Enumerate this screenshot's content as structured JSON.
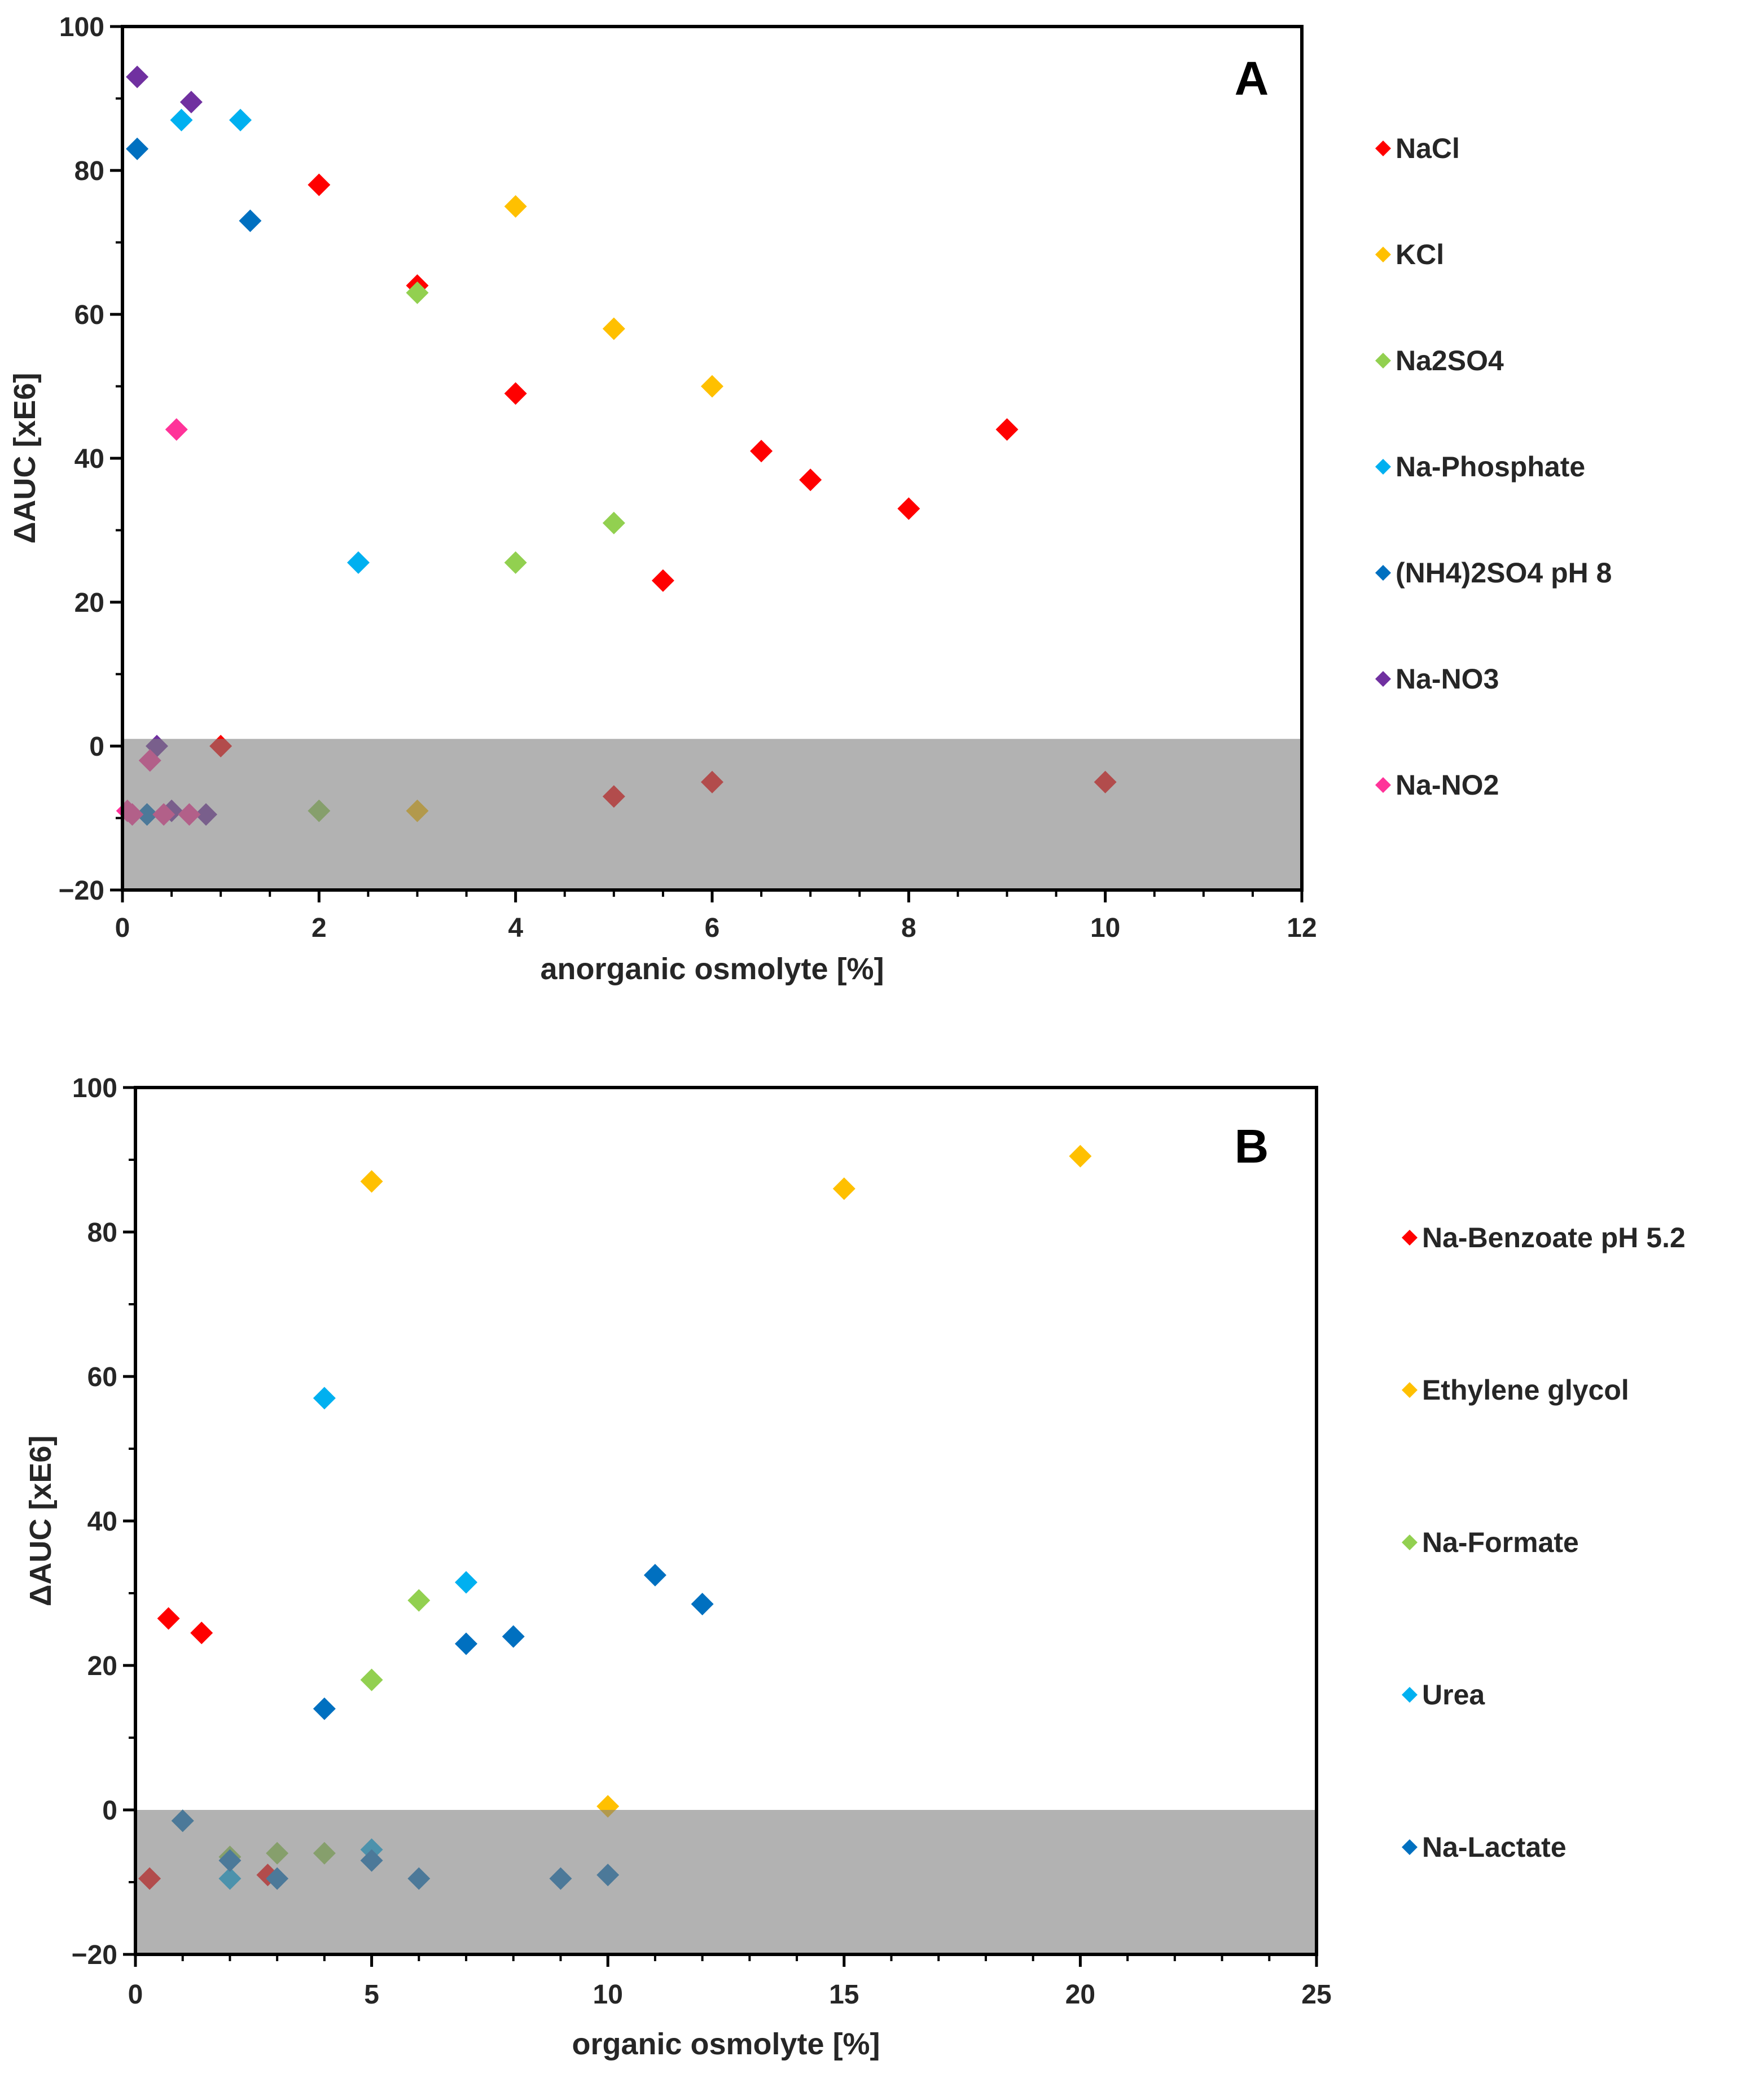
{
  "chart_data": [
    {
      "type": "scatter",
      "panel_label": "A",
      "xlabel": "anorganic osmolyte [%]",
      "ylabel": "ΔAUC [xE6]",
      "xlim": [
        0,
        12
      ],
      "ylim": [
        -20,
        100
      ],
      "xticks": [
        "0",
        "2",
        "4",
        "6",
        "8",
        "10",
        "12"
      ],
      "yticks": [
        "−20",
        "0",
        "20",
        "40",
        "60",
        "80",
        "100"
      ],
      "shaded_region": {
        "y_from": -20,
        "y_to": 1
      },
      "legend_position": "right",
      "series": [
        {
          "name": "NaCl",
          "color": "#ff0000",
          "points": [
            [
              1,
              0
            ],
            [
              2,
              78
            ],
            [
              3,
              64
            ],
            [
              4,
              49
            ],
            [
              5,
              -7
            ],
            [
              5.5,
              23
            ],
            [
              6,
              -5
            ],
            [
              6.5,
              41
            ],
            [
              7,
              37
            ],
            [
              8,
              33
            ],
            [
              9,
              44
            ],
            [
              10,
              -5
            ]
          ]
        },
        {
          "name": "KCl",
          "color": "#ffc000",
          "points": [
            [
              3,
              -9
            ],
            [
              4,
              75
            ],
            [
              5,
              58
            ],
            [
              6,
              50
            ]
          ]
        },
        {
          "name": "Na2SO4",
          "color": "#92d050",
          "points": [
            [
              2,
              -9
            ],
            [
              3,
              63
            ],
            [
              4,
              25.5
            ],
            [
              5,
              31
            ]
          ]
        },
        {
          "name": "Na-Phosphate",
          "color": "#00b0f0",
          "points": [
            [
              0.25,
              -9.5
            ],
            [
              0.6,
              87
            ],
            [
              1.2,
              87
            ],
            [
              2.4,
              25.5
            ]
          ]
        },
        {
          "name": "(NH4)2SO4 pH 8",
          "color": "#0070c0",
          "points": [
            [
              0.15,
              83
            ],
            [
              0.25,
              -9.5
            ],
            [
              1.3,
              73
            ]
          ]
        },
        {
          "name": "Na-NO3",
          "color": "#7030a0",
          "points": [
            [
              0.15,
              93
            ],
            [
              0.35,
              0
            ],
            [
              0.5,
              -9
            ],
            [
              0.7,
              89.5
            ],
            [
              0.85,
              -9.5
            ]
          ]
        },
        {
          "name": "Na-NO2",
          "color": "#ff3399",
          "points": [
            [
              0.05,
              -9
            ],
            [
              0.1,
              -9.5
            ],
            [
              0.28,
              -2
            ],
            [
              0.42,
              -9.5
            ],
            [
              0.55,
              44
            ],
            [
              0.68,
              -9.5
            ]
          ]
        }
      ]
    },
    {
      "type": "scatter",
      "panel_label": "B",
      "xlabel": "organic osmolyte [%]",
      "ylabel": "ΔAUC [xE6]",
      "xlim": [
        0,
        25
      ],
      "ylim": [
        -20,
        100
      ],
      "xticks": [
        "0",
        "5",
        "10",
        "15",
        "20",
        "25"
      ],
      "yticks": [
        "−20",
        "0",
        "20",
        "40",
        "60",
        "80",
        "100"
      ],
      "shaded_region": {
        "y_from": -20,
        "y_to": 0
      },
      "legend_position": "right",
      "series": [
        {
          "name": "Na-Benzoate pH 5.2",
          "color": "#ff0000",
          "points": [
            [
              0.3,
              -9.5
            ],
            [
              0.7,
              26.5
            ],
            [
              1.4,
              24.5
            ],
            [
              2.8,
              -9
            ]
          ]
        },
        {
          "name": "Ethylene glycol",
          "color": "#ffc000",
          "points": [
            [
              5,
              87
            ],
            [
              10,
              0.5
            ],
            [
              15,
              86
            ],
            [
              20,
              90.5
            ]
          ]
        },
        {
          "name": "Na-Formate",
          "color": "#92d050",
          "points": [
            [
              1,
              -1.5
            ],
            [
              2,
              -6.5
            ],
            [
              3,
              -6
            ],
            [
              4,
              -6
            ],
            [
              5,
              18
            ],
            [
              6,
              29
            ]
          ]
        },
        {
          "name": "Urea",
          "color": "#00b0f0",
          "points": [
            [
              2,
              -9.5
            ],
            [
              4,
              57
            ],
            [
              5,
              -5.5
            ],
            [
              7,
              31.5
            ]
          ]
        },
        {
          "name": "Na-Lactate",
          "color": "#0070c0",
          "points": [
            [
              1,
              -1.5
            ],
            [
              2,
              -7
            ],
            [
              3,
              -9.5
            ],
            [
              4,
              14
            ],
            [
              5,
              -7
            ],
            [
              6,
              -9.5
            ],
            [
              7,
              23
            ],
            [
              8,
              24
            ],
            [
              9,
              -9.5
            ],
            [
              10,
              -9
            ],
            [
              11,
              32.5
            ],
            [
              12,
              28.5
            ]
          ]
        }
      ]
    }
  ]
}
